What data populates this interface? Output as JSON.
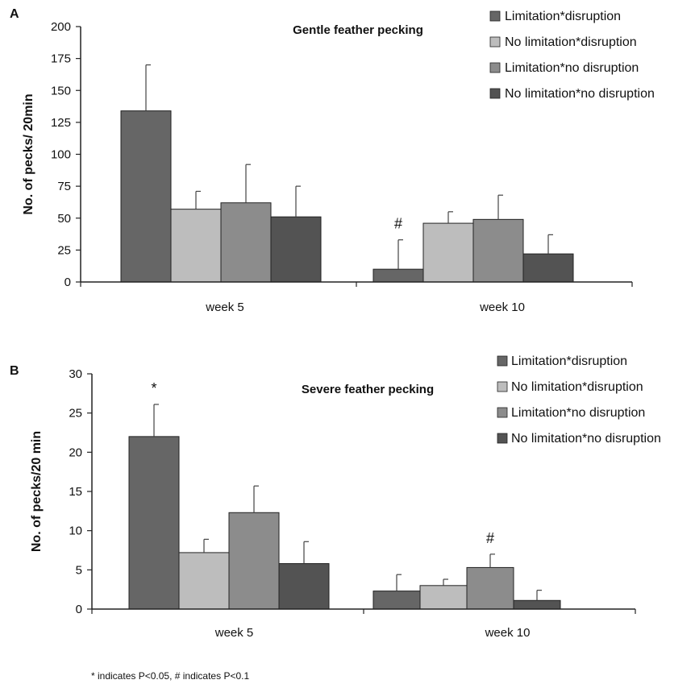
{
  "chart_data": [
    {
      "type": "bar",
      "panel": "A",
      "title": "Gentle feather pecking",
      "ylabel": "No. of pecks/ 20min",
      "xlabel": "",
      "categories": [
        "week 5",
        "week 10"
      ],
      "ylim": [
        0,
        200
      ],
      "yticks": [
        0,
        25,
        50,
        75,
        100,
        125,
        150,
        175,
        200
      ],
      "series": [
        {
          "name": "Limitation*disruption",
          "values": [
            134,
            10
          ],
          "errors": [
            36,
            23
          ],
          "color": "#666666"
        },
        {
          "name": "No limitation*disruption",
          "values": [
            57,
            46
          ],
          "errors": [
            14,
            9
          ],
          "color": "#bdbdbd"
        },
        {
          "name": "Limitation*no disruption",
          "values": [
            62,
            49
          ],
          "errors": [
            30,
            19
          ],
          "color": "#8c8c8c"
        },
        {
          "name": "No limitation*no disruption",
          "values": [
            51,
            22
          ],
          "errors": [
            24,
            15
          ],
          "color": "#535353"
        }
      ],
      "annotations": [
        {
          "text": "#",
          "category": 1,
          "series": 0
        }
      ],
      "legend": "top-right",
      "grid": false
    },
    {
      "type": "bar",
      "panel": "B",
      "title": "Severe feather pecking",
      "ylabel": "No. of pecks/20  min",
      "xlabel": "",
      "categories": [
        "week 5",
        "week 10"
      ],
      "ylim": [
        0,
        30
      ],
      "yticks": [
        0,
        5,
        10,
        15,
        20,
        25,
        30
      ],
      "series": [
        {
          "name": "Limitation*disruption",
          "values": [
            22,
            2.3
          ],
          "errors": [
            4.1,
            2.1
          ],
          "color": "#666666"
        },
        {
          "name": "No limitation*disruption",
          "values": [
            7.2,
            3.0
          ],
          "errors": [
            1.7,
            0.8
          ],
          "color": "#bdbdbd"
        },
        {
          "name": "Limitation*no disruption",
          "values": [
            12.3,
            5.3
          ],
          "errors": [
            3.4,
            1.7
          ],
          "color": "#8c8c8c"
        },
        {
          "name": "No limitation*no disruption",
          "values": [
            5.8,
            1.1
          ],
          "errors": [
            2.8,
            1.3
          ],
          "color": "#535353"
        }
      ],
      "annotations": [
        {
          "text": "*",
          "category": 0,
          "series": 0
        },
        {
          "text": "#",
          "category": 1,
          "series": 2
        }
      ],
      "legend": "top-right",
      "grid": false
    }
  ],
  "footnote": "* indicates P<0.05, # indicates P<0.1"
}
